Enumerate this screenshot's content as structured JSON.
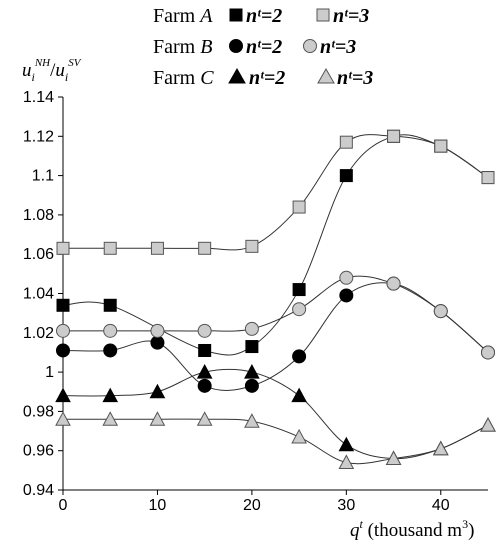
{
  "chart_data": {
    "type": "line",
    "xlabel": "qᵗ (thousand m³)",
    "xlabel_parts": {
      "q": "q",
      "t": "t",
      "unit": " (thousand m",
      "cube": "3",
      "close": ")"
    },
    "ylabel_parts": {
      "u1": "u",
      "sub1": "i",
      "sup1": "NH",
      "slash": "/",
      "u2": "u",
      "sub2": "i",
      "sup2": "SV"
    },
    "xlim": [
      0,
      45
    ],
    "ylim": [
      0.94,
      1.14
    ],
    "x_ticks": [
      0,
      10,
      20,
      30,
      40
    ],
    "y_ticks": [
      0.94,
      0.96,
      0.98,
      1,
      1.02,
      1.04,
      1.06,
      1.08,
      1.1,
      1.12,
      1.14
    ],
    "y_tick_labels": [
      "0.94",
      "0.96",
      "0.98",
      "1",
      "1.02",
      "1.04",
      "1.06",
      "1.08",
      "1.1",
      "1.12",
      "1.14"
    ],
    "x_tick_labels": [
      "0",
      "10",
      "20",
      "30",
      "40"
    ],
    "x": [
      0,
      5,
      10,
      15,
      20,
      25,
      30,
      35,
      40,
      45
    ],
    "grid": false,
    "legend_position": "top-right",
    "legend": [
      {
        "farm_prefix": "Farm ",
        "farm_letter": "A",
        "items": [
          "nᵗ=2",
          "nᵗ=3"
        ]
      },
      {
        "farm_prefix": "Farm ",
        "farm_letter": "B",
        "items": [
          "nᵗ=2",
          "nᵗ=3"
        ]
      },
      {
        "farm_prefix": "Farm ",
        "farm_letter": "C",
        "items": [
          "nᵗ=2",
          "nᵗ=3"
        ]
      }
    ],
    "series": [
      {
        "name": "Farm A nᵗ=2",
        "marker": "square",
        "fill": "#000000",
        "values": [
          1.034,
          1.034,
          null,
          1.011,
          1.013,
          1.042,
          1.1,
          1.12,
          1.115,
          1.099
        ]
      },
      {
        "name": "Farm A nᵗ=3",
        "marker": "square",
        "fill": "#cccccc",
        "values": [
          1.063,
          1.063,
          1.063,
          1.063,
          1.064,
          1.084,
          1.117,
          1.12,
          1.115,
          1.099
        ]
      },
      {
        "name": "Farm B nᵗ=2",
        "marker": "circle",
        "fill": "#000000",
        "values": [
          1.011,
          1.011,
          1.015,
          0.993,
          0.993,
          1.008,
          1.039,
          1.045,
          1.031,
          1.01
        ]
      },
      {
        "name": "Farm B nᵗ=3",
        "marker": "circle",
        "fill": "#cccccc",
        "values": [
          1.021,
          1.021,
          1.021,
          1.021,
          1.022,
          1.032,
          1.048,
          1.045,
          1.031,
          1.01
        ]
      },
      {
        "name": "Farm C nᵗ=2",
        "marker": "triangle",
        "fill": "#000000",
        "values": [
          0.988,
          0.988,
          0.99,
          1.0,
          1.0,
          0.988,
          0.963,
          0.956,
          0.961,
          0.973
        ]
      },
      {
        "name": "Farm C nᵗ=3",
        "marker": "triangle",
        "fill": "#cccccc",
        "values": [
          0.976,
          0.976,
          0.976,
          0.976,
          0.975,
          0.967,
          0.954,
          0.956,
          0.961,
          0.973
        ]
      }
    ]
  }
}
